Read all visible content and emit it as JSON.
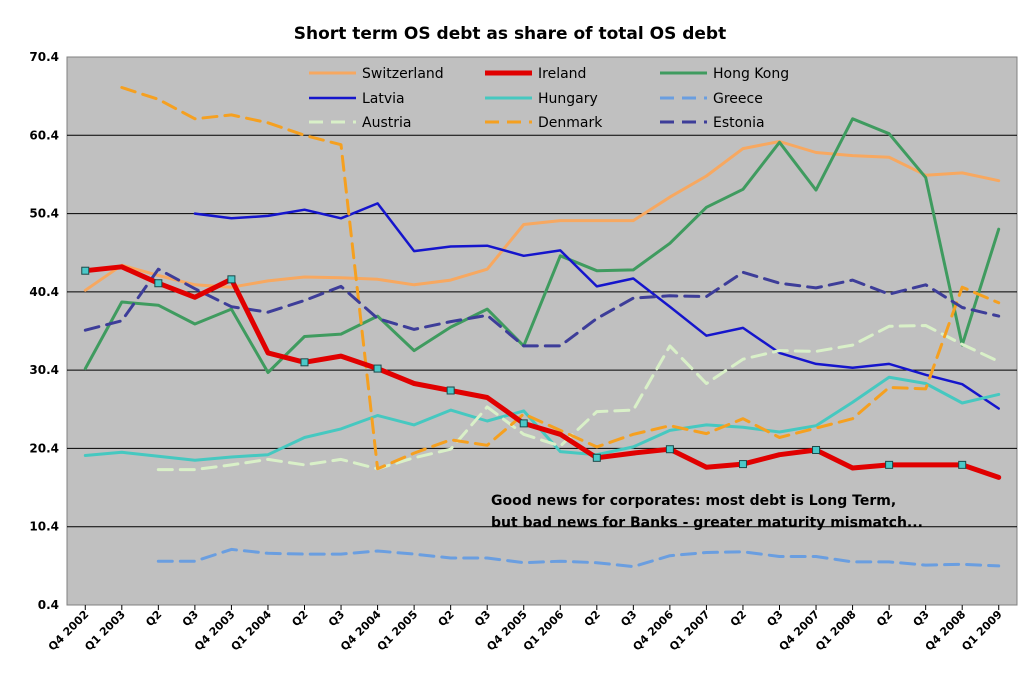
{
  "chart_data": {
    "type": "line",
    "title": "Short term OS debt as share of total OS debt",
    "xlabel": "",
    "ylabel": "",
    "ylim": [
      0.4,
      70.4
    ],
    "yticks": [
      "70.4",
      "60.4",
      "50.4",
      "40.4",
      "30.4",
      "20.4",
      "10.4",
      "0.4"
    ],
    "grid": true,
    "legend_position": "top",
    "annotation": [
      "Good news  for corporates: most debt is Long Term,",
      "but bad news for Banks - greater maturity mismatch..."
    ],
    "categories": [
      "Q4 2002",
      "Q1 2003",
      "Q2",
      "Q3",
      "Q4 2003",
      "Q1 2004",
      "Q2",
      "Q3",
      "Q4 2004",
      "Q1 2005",
      "Q2",
      "Q3",
      "Q4 2005",
      "Q1 2006",
      "Q2",
      "Q3",
      "Q4 2006",
      "Q1 2007",
      "Q2",
      "Q3",
      "Q4 2007",
      "Q1 2008",
      "Q2",
      "Q3",
      "Q4 2008",
      "Q1 2009"
    ],
    "series": [
      {
        "name": "Switzerland",
        "color": "#f7a860",
        "dash": "solid",
        "width": 3,
        "values": [
          40.6,
          43.8,
          42.5,
          41.3,
          41.0,
          41.8,
          42.3,
          42.2,
          42.0,
          41.3,
          41.9,
          43.3,
          49.0,
          49.5,
          49.5,
          49.5,
          52.5,
          55.2,
          58.7,
          59.6,
          58.2,
          57.8,
          57.6,
          55.3,
          55.6,
          54.6
        ]
      },
      {
        "name": "Ireland",
        "color": "#e00000",
        "dash": "solid",
        "width": 5,
        "markers": true,
        "values": [
          43.1,
          43.6,
          41.5,
          39.7,
          42.0,
          32.6,
          31.4,
          32.2,
          30.6,
          28.7,
          27.8,
          26.9,
          23.6,
          22.2,
          19.2,
          19.8,
          20.3,
          18.0,
          18.4,
          19.6,
          20.2,
          17.9,
          18.3,
          18.3,
          18.3,
          16.7
        ]
      },
      {
        "name": "Hong Kong",
        "color": "#3f9b5f",
        "dash": "solid",
        "width": 3,
        "values": [
          30.6,
          39.1,
          38.7,
          36.3,
          38.2,
          30.1,
          34.7,
          35.0,
          37.3,
          32.9,
          35.9,
          38.2,
          33.5,
          45.0,
          43.1,
          43.2,
          46.6,
          51.2,
          53.5,
          59.5,
          53.4,
          62.5,
          60.6,
          55.0,
          33.6,
          48.4
        ]
      },
      {
        "name": "Latvia",
        "color": "#1515cc",
        "dash": "solid",
        "width": 2.5,
        "values": [
          null,
          null,
          null,
          50.4,
          49.8,
          50.1,
          50.9,
          49.8,
          51.7,
          45.6,
          46.2,
          46.3,
          45.0,
          45.7,
          41.1,
          42.1,
          38.5,
          34.8,
          35.8,
          32.6,
          31.2,
          30.7,
          31.2,
          29.8,
          28.6,
          25.5
        ]
      },
      {
        "name": "Hungary",
        "color": "#46c8c0",
        "dash": "solid",
        "width": 3,
        "values": [
          19.5,
          19.9,
          19.4,
          18.9,
          19.3,
          19.6,
          21.8,
          22.9,
          24.6,
          23.4,
          25.3,
          23.9,
          25.2,
          20.0,
          19.6,
          20.6,
          22.7,
          23.4,
          23.1,
          22.5,
          23.3,
          26.3,
          29.5,
          28.7,
          26.2,
          27.3
        ]
      },
      {
        "name": "Greece",
        "color": "#6a9ee0",
        "dash": "dash",
        "width": 3,
        "values": [
          null,
          null,
          6.0,
          6.0,
          7.5,
          7.0,
          6.9,
          6.9,
          7.3,
          6.9,
          6.4,
          6.4,
          5.8,
          6.0,
          5.8,
          5.3,
          6.7,
          7.1,
          7.2,
          6.6,
          6.6,
          5.9,
          5.9,
          5.5,
          5.6,
          5.4
        ]
      },
      {
        "name": "Austria",
        "color": "#d9f0c8",
        "dash": "dash",
        "width": 3,
        "values": [
          null,
          null,
          17.7,
          17.7,
          18.3,
          19.0,
          18.3,
          19.0,
          17.8,
          19.2,
          20.3,
          25.7,
          22.2,
          20.7,
          25.1,
          25.3,
          33.5,
          28.7,
          31.8,
          32.9,
          32.8,
          33.6,
          36.0,
          36.1,
          33.7,
          31.5
        ]
      },
      {
        "name": "Denmark",
        "color": "#f5a020",
        "dash": "dash",
        "width": 3,
        "values": [
          null,
          66.5,
          65.0,
          62.5,
          63.0,
          62.0,
          60.4,
          59.2,
          17.8,
          19.8,
          21.5,
          20.8,
          24.8,
          22.7,
          20.6,
          22.2,
          23.3,
          22.3,
          24.2,
          21.8,
          23.0,
          24.2,
          28.2,
          28.0,
          41.0,
          39.0
        ]
      },
      {
        "name": "Estonia",
        "color": "#3d3d99",
        "dash": "dash",
        "width": 3,
        "values": [
          35.5,
          36.7,
          43.3,
          40.8,
          38.5,
          37.8,
          39.3,
          41.1,
          37.0,
          35.6,
          36.6,
          37.4,
          33.5,
          33.5,
          37.0,
          39.6,
          39.9,
          39.8,
          42.9,
          41.5,
          40.9,
          41.9,
          40.1,
          41.3,
          38.4,
          37.3
        ]
      }
    ]
  }
}
